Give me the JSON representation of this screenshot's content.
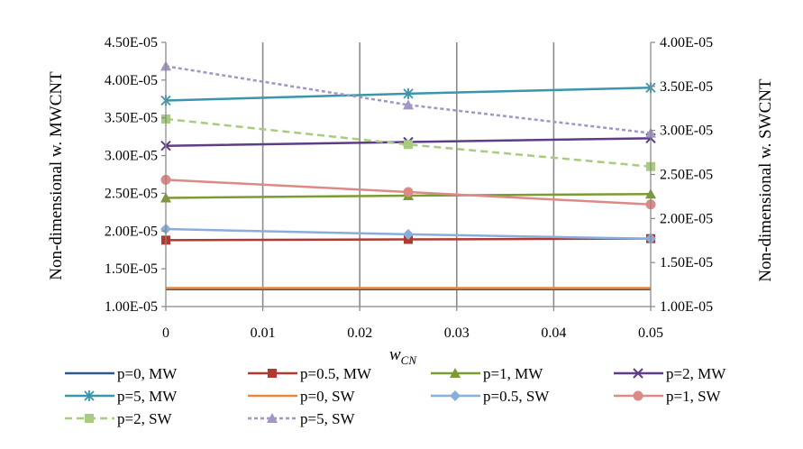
{
  "chart_data": {
    "type": "line",
    "title": "",
    "xlabel": "w",
    "xlabel_sub": "CN",
    "ylabel_left": "Non-dimensional w. MWCNT",
    "ylabel_right": "Non-dimensional w. SWCNT",
    "x": [
      0,
      0.025,
      0.05
    ],
    "xlim": [
      0,
      0.05
    ],
    "x_ticks": [
      "0",
      "0.01",
      "0.02",
      "0.03",
      "0.04",
      "0.05"
    ],
    "x_tick_values": [
      0,
      0.01,
      0.02,
      0.03,
      0.04,
      0.05
    ],
    "ylim_left": [
      1e-05,
      4.5e-05
    ],
    "y_ticks_left": [
      "1.00E-05",
      "1.50E-05",
      "2.00E-05",
      "2.50E-05",
      "3.00E-05",
      "3.50E-05",
      "4.00E-05",
      "4.50E-05"
    ],
    "ylim_right": [
      1e-05,
      4e-05
    ],
    "y_ticks_right": [
      "1.00E-05",
      "1.50E-05",
      "2.00E-05",
      "2.50E-05",
      "3.00E-05",
      "3.50E-05",
      "4.00E-05"
    ],
    "grid": "vertical",
    "legend_position": "bottom",
    "series": [
      {
        "name": "p=0, MW",
        "axis": "left",
        "color": "#2e5a8a",
        "marker": "none",
        "dash": "none",
        "values": [
          1.23e-05,
          1.23e-05,
          1.23e-05
        ]
      },
      {
        "name": "p=0.5, MW",
        "axis": "left",
        "color": "#b03a32",
        "marker": "square",
        "dash": "none",
        "values": [
          1.88e-05,
          1.89e-05,
          1.9e-05
        ]
      },
      {
        "name": "p=1, MW",
        "axis": "left",
        "color": "#7a9c32",
        "marker": "triangle",
        "dash": "none",
        "values": [
          2.44e-05,
          2.47e-05,
          2.49e-05
        ]
      },
      {
        "name": "p=2, MW",
        "axis": "left",
        "color": "#5e3c86",
        "marker": "x",
        "dash": "none",
        "values": [
          3.13e-05,
          3.18e-05,
          3.23e-05
        ]
      },
      {
        "name": "p=5, MW",
        "axis": "left",
        "color": "#3a95ad",
        "marker": "star",
        "dash": "none",
        "values": [
          3.73e-05,
          3.82e-05,
          3.9e-05
        ]
      },
      {
        "name": "p=0, SW",
        "axis": "right",
        "color": "#e8883c",
        "marker": "none",
        "dash": "none",
        "values": [
          1.21e-05,
          1.21e-05,
          1.21e-05
        ]
      },
      {
        "name": "p=0.5, SW",
        "axis": "right",
        "color": "#8aaedc",
        "marker": "diamond",
        "dash": "none",
        "values": [
          1.88e-05,
          1.82e-05,
          1.77e-05
        ]
      },
      {
        "name": "p=1, SW",
        "axis": "right",
        "color": "#dc8a86",
        "marker": "circle",
        "dash": "none",
        "values": [
          2.44e-05,
          2.3e-05,
          2.16e-05
        ]
      },
      {
        "name": "p=2, SW",
        "axis": "right",
        "color": "#a8cc7e",
        "marker": "square",
        "dash": "8,5",
        "values": [
          3.13e-05,
          2.84e-05,
          2.59e-05
        ]
      },
      {
        "name": "p=5, SW",
        "axis": "right",
        "color": "#a395c4",
        "marker": "triangle",
        "dash": "4,3",
        "values": [
          3.73e-05,
          3.29e-05,
          2.97e-05
        ]
      }
    ]
  }
}
